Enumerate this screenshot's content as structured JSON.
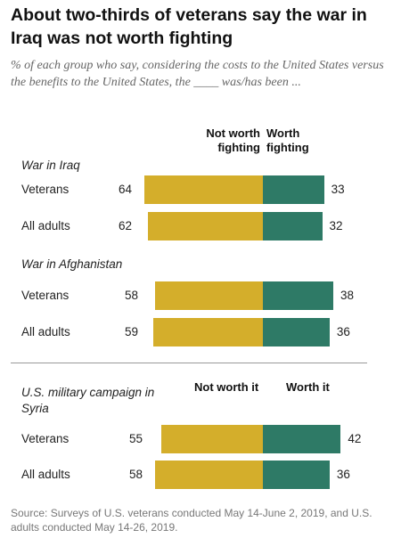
{
  "title": "About two-thirds of veterans say the war in Iraq was not worth fighting",
  "subtitle": "% of each group who say, considering the costs to the United States versus the benefits to the United States, the ____ was/has been ...",
  "colors": {
    "not_worth": "#D4AE2B",
    "worth": "#2E7A66"
  },
  "chart_data": {
    "type": "bar",
    "orientation": "horizontal-diverging",
    "series": [
      {
        "name": "Not worth fighting",
        "alt_name": "Not worth it"
      },
      {
        "name": "Worth fighting",
        "alt_name": "Worth it"
      }
    ],
    "groups": [
      {
        "label": "War in Iraq",
        "col_left": "Not worth fighting",
        "col_right": "Worth fighting",
        "rows": [
          {
            "label": "Veterans",
            "not_worth": 64,
            "worth": 33
          },
          {
            "label": "All adults",
            "not_worth": 62,
            "worth": 32
          }
        ]
      },
      {
        "label": "War in Afghanistan",
        "rows": [
          {
            "label": "Veterans",
            "not_worth": 58,
            "worth": 38
          },
          {
            "label": "All adults",
            "not_worth": 59,
            "worth": 36
          }
        ]
      },
      {
        "label": "U.S. military campaign in Syria",
        "col_left": "Not worth it",
        "col_right": "Worth it",
        "rows": [
          {
            "label": "Veterans",
            "not_worth": 55,
            "worth": 42
          },
          {
            "label": "All adults",
            "not_worth": 58,
            "worth": 36
          }
        ]
      }
    ]
  },
  "source": "Source: Surveys of U.S. veterans conducted May 14-June 2, 2019, and U.S. adults conducted May 14-26, 2019."
}
